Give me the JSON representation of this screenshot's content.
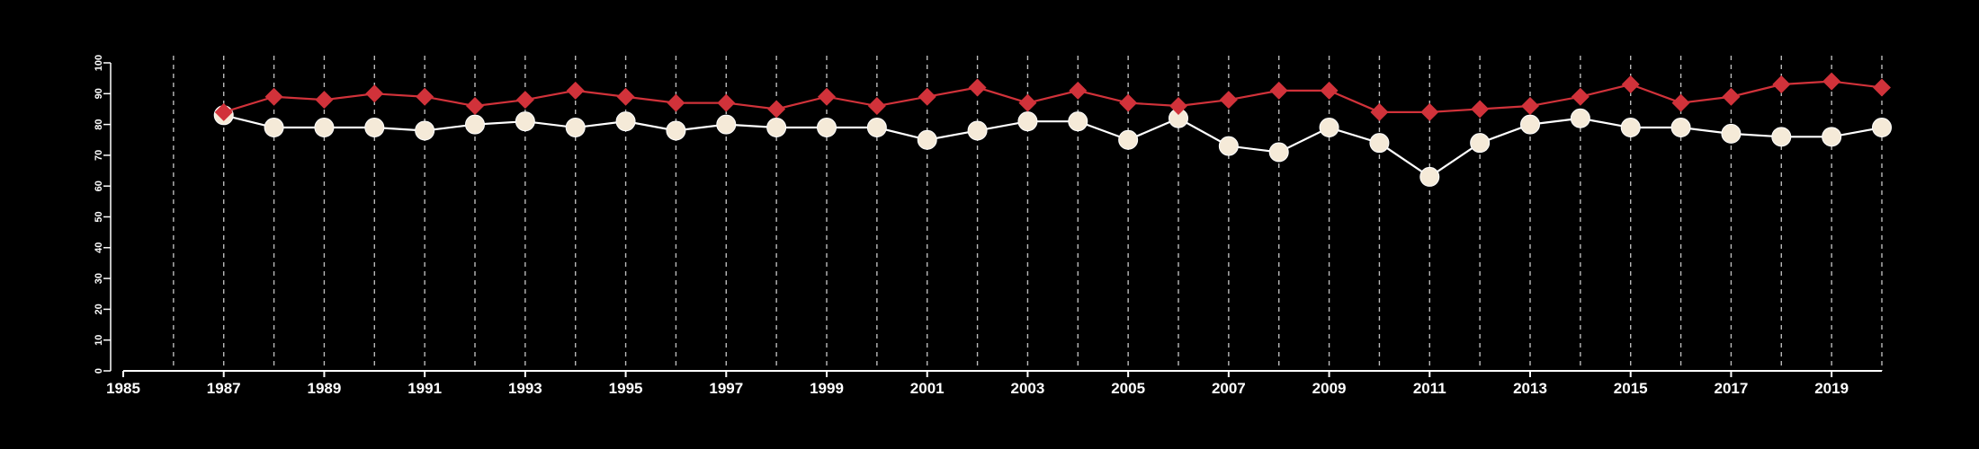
{
  "chart_data": {
    "type": "line",
    "x": [
      1987,
      1988,
      1989,
      1990,
      1991,
      1992,
      1993,
      1994,
      1995,
      1996,
      1997,
      1998,
      1999,
      2000,
      2001,
      2002,
      2003,
      2004,
      2005,
      2006,
      2007,
      2008,
      2009,
      2010,
      2011,
      2012,
      2013,
      2014,
      2015,
      2016,
      2017,
      2018,
      2019,
      2020
    ],
    "xlim": [
      1985,
      2020
    ],
    "x_tick_labels": [
      "1985",
      "1987",
      "1989",
      "1991",
      "1993",
      "1995",
      "1997",
      "1999",
      "2001",
      "2003",
      "2005",
      "2007",
      "2009",
      "2011",
      "2013",
      "2015",
      "2017",
      "2019"
    ],
    "ylim": [
      0,
      100
    ],
    "y_ticks": [
      0,
      10,
      20,
      30,
      40,
      50,
      60,
      70,
      80,
      90,
      100
    ],
    "y_tick_labels": [
      "0",
      "10",
      "20",
      "30",
      "40",
      "50",
      "60",
      "70",
      "80",
      "90",
      "100"
    ],
    "vertical_gridlines": "every year, dashed",
    "series": [
      {
        "marker": "diamond",
        "color": "#d1323a",
        "values": [
          84,
          89,
          88,
          90,
          89,
          86,
          88,
          91,
          89,
          87,
          87,
          85,
          89,
          86,
          89,
          92,
          87,
          91,
          87,
          86,
          88,
          91,
          91,
          84,
          84,
          85,
          86,
          89,
          93,
          87,
          89,
          93,
          94,
          92
        ]
      },
      {
        "marker": "circle",
        "color": "#ffffff",
        "fill": "#f5ead8",
        "values": [
          83,
          79,
          79,
          79,
          78,
          80,
          81,
          79,
          81,
          78,
          80,
          79,
          79,
          79,
          75,
          78,
          81,
          81,
          75,
          82,
          73,
          71,
          79,
          74,
          63,
          74,
          80,
          82,
          79,
          79,
          77,
          76,
          76,
          79
        ]
      }
    ],
    "title": "",
    "xlabel": "",
    "ylabel": "",
    "background": "#000000",
    "axis_color": "#ffffff",
    "grid_color": "#bbbbbb"
  }
}
